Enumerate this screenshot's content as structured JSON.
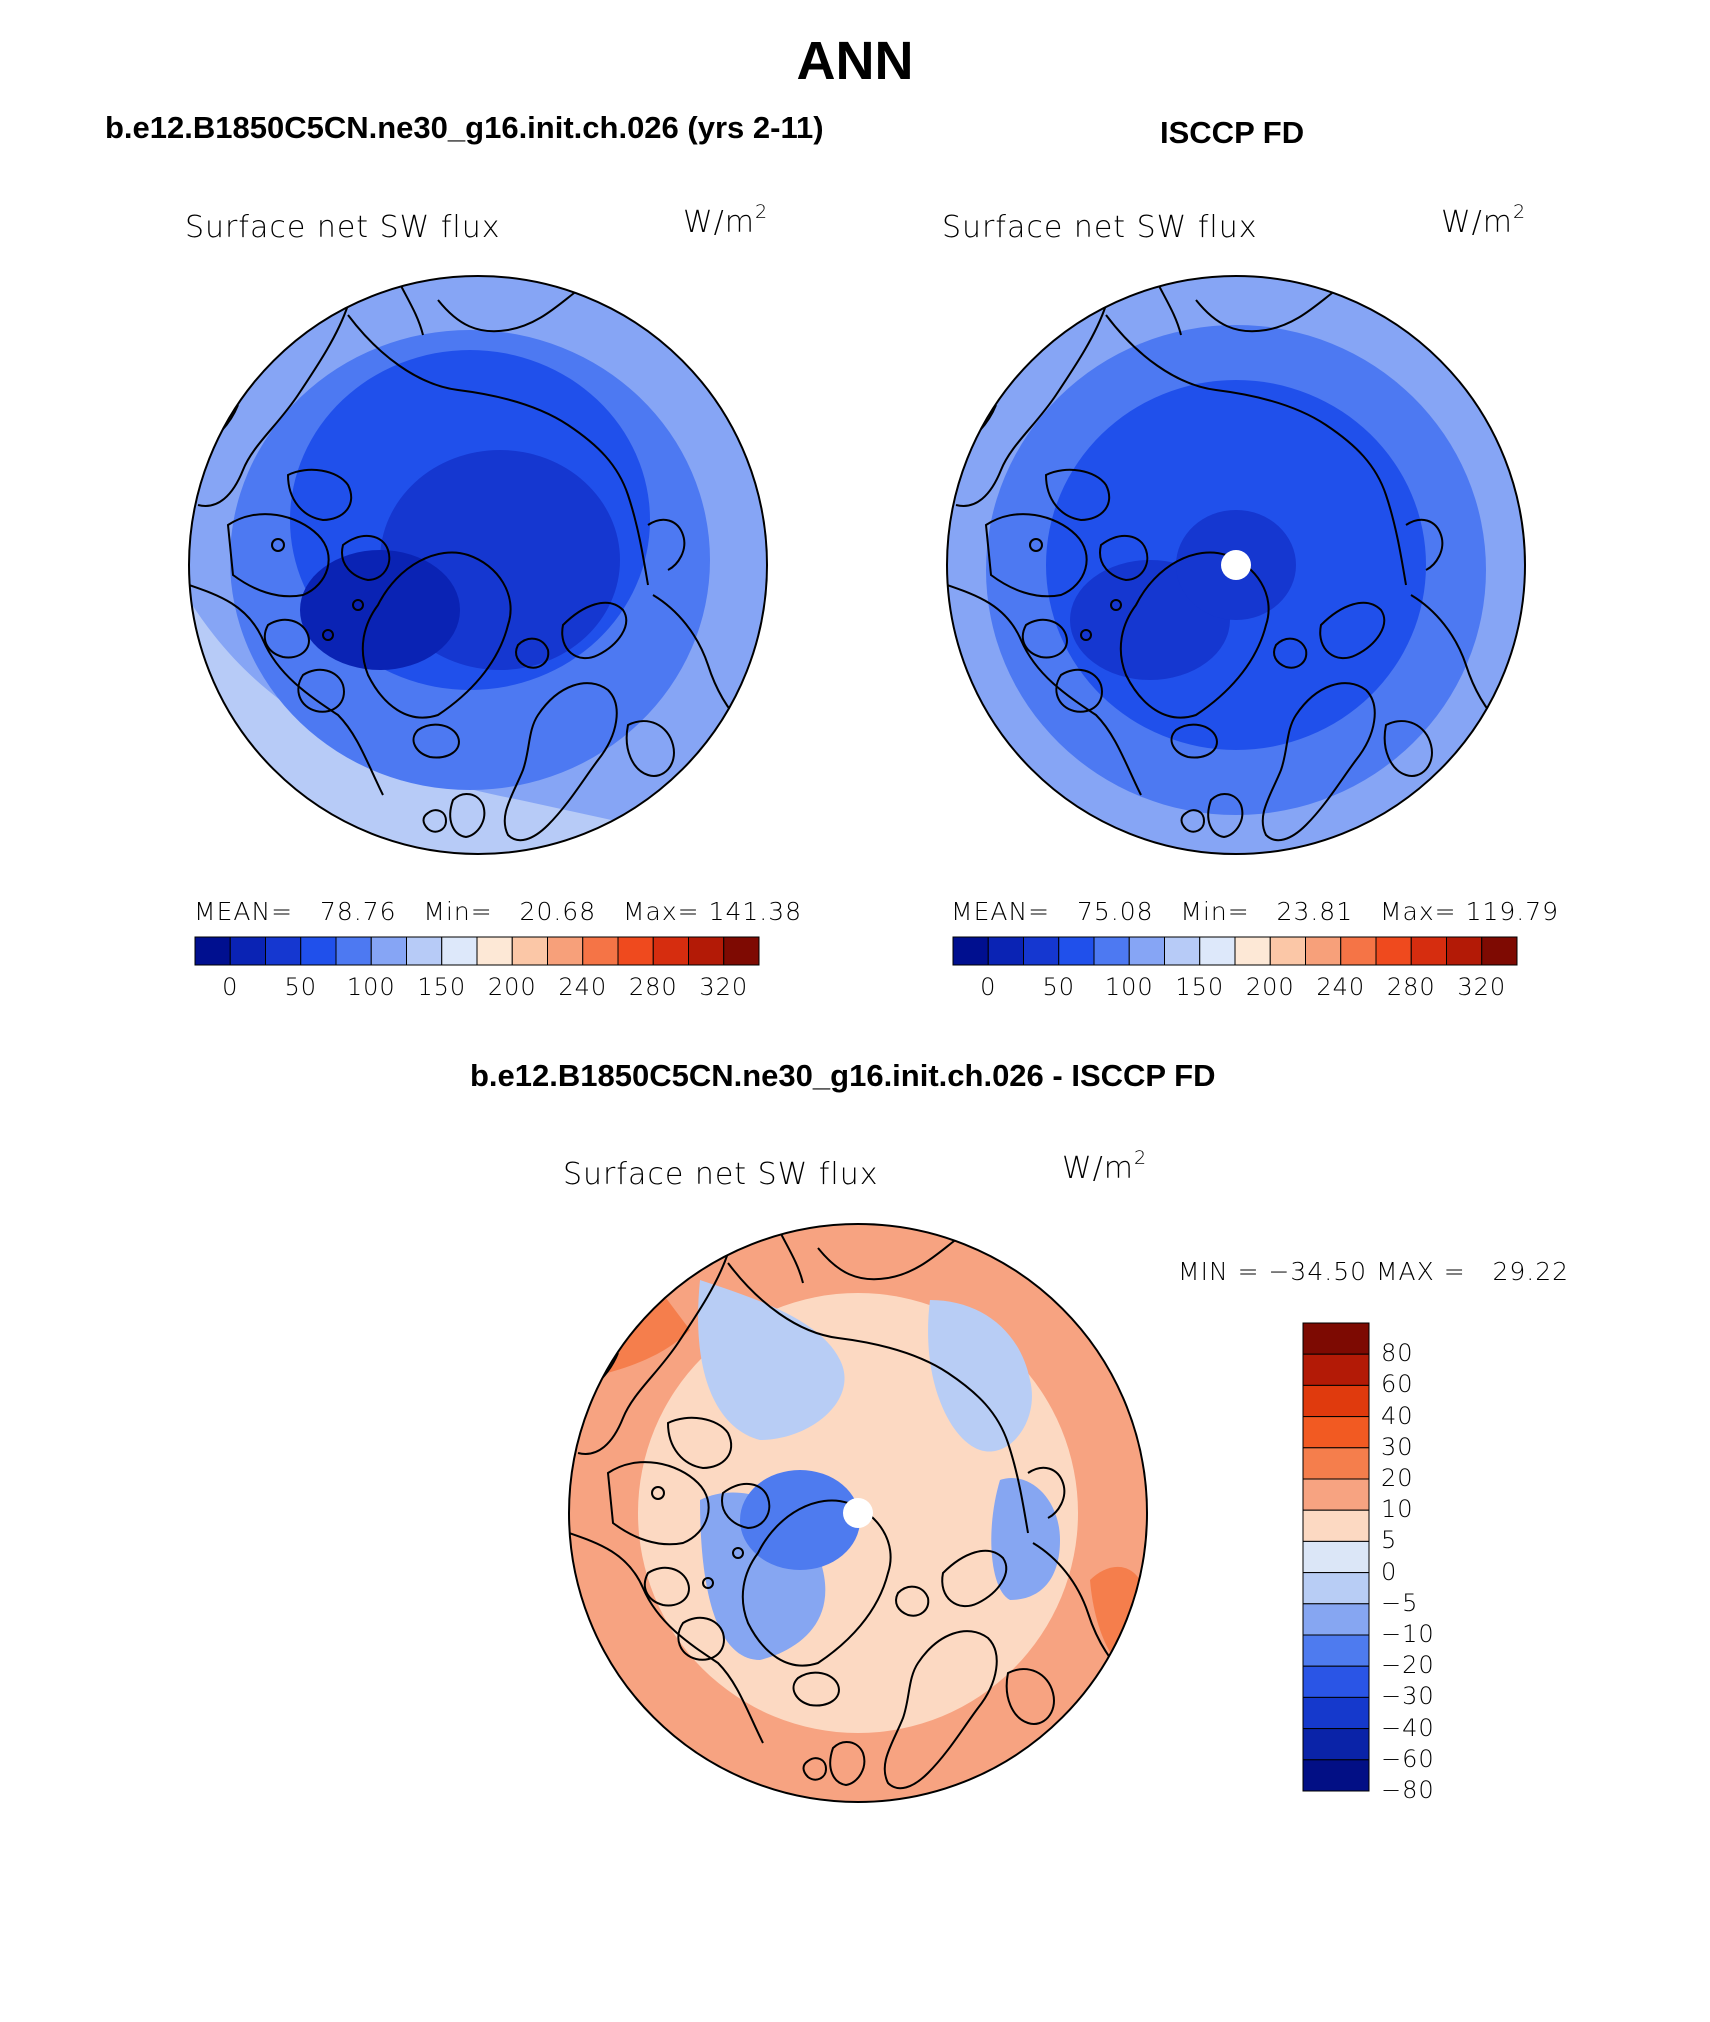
{
  "title": "ANN",
  "panels": [
    {
      "case_title": "b.e12.B1850C5CN.ne30_g16.init.ch.026 (yrs 2-11)",
      "variable": "Surface net SW flux",
      "units_base": "W/m",
      "units_exp": "2",
      "stats": {
        "mean_label": "MEAN=",
        "mean": "78.76",
        "min_label": "Min=",
        "min": "20.68",
        "max_label": "Max=",
        "max": "141.38"
      }
    },
    {
      "case_title": "ISCCP FD",
      "variable": "Surface net SW flux",
      "units_base": "W/m",
      "units_exp": "2",
      "stats": {
        "mean_label": "MEAN=",
        "mean": "75.08",
        "min_label": "Min=",
        "min": "23.81",
        "max_label": "Max=",
        "max": "119.79"
      }
    },
    {
      "case_title": "b.e12.B1850C5CN.ne30_g16.init.ch.026 - ISCCP FD",
      "variable": "Surface net SW flux",
      "units_base": "W/m",
      "units_exp": "2",
      "stats_text": "MIN = −34.50 MAX =   29.22"
    }
  ],
  "abs_colorbar": {
    "colors": [
      "#000f8f",
      "#0a23b4",
      "#1537d0",
      "#2050eb",
      "#4d79f2",
      "#86a5f5",
      "#b7cbf7",
      "#dde8fa",
      "#fde8d6",
      "#fbc7a7",
      "#f7a07a",
      "#f57446",
      "#ef4a1e",
      "#d62d0f",
      "#b31a06",
      "#7e0a02"
    ],
    "tick_labels": [
      "0",
      "50",
      "100",
      "150",
      "200",
      "240",
      "280",
      "320"
    ],
    "tick_boundaries": [
      1,
      3,
      5,
      7,
      9,
      11,
      13,
      15
    ]
  },
  "diff_colorbar": {
    "colors": [
      "#7d0a02",
      "#b31a06",
      "#e03a0d",
      "#f25a22",
      "#f57e4c",
      "#f7a381",
      "#fcd9c2",
      "#dbe6f7",
      "#b8cdf5",
      "#86a6f2",
      "#4e7bef",
      "#2a55e6",
      "#1539cc",
      "#0a23a8",
      "#020f85"
    ],
    "tick_labels": [
      "80",
      "60",
      "40",
      "30",
      "20",
      "10",
      "5",
      "0",
      "−5",
      "−10",
      "−20",
      "−30",
      "−40",
      "−60",
      "−80"
    ]
  },
  "coastline_color": "#000000"
}
